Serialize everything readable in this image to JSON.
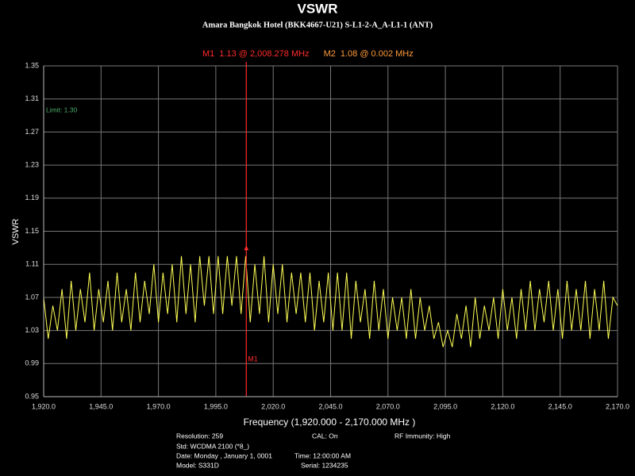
{
  "chart_data": {
    "type": "line",
    "title": "VSWR",
    "subtitle": "Amara Bangkok Hotel (BKK4667-U21) S-L1-2-A_A-L1-1 (ANT)",
    "y_label": "VSWR",
    "x_label": "Frequency (1,920.000 - 2,170.000 MHz )",
    "grid": true,
    "xlim": [
      1920,
      2170
    ],
    "ylim": [
      0.95,
      1.35
    ],
    "xticks": [
      {
        "value": 1920,
        "label": "1,920.0"
      },
      {
        "value": 1945,
        "label": "1,945.0"
      },
      {
        "value": 1970,
        "label": "1,970.0"
      },
      {
        "value": 1995,
        "label": "1,995.0"
      },
      {
        "value": 2020,
        "label": "2,020.0"
      },
      {
        "value": 2045,
        "label": "2,045.0"
      },
      {
        "value": 2070,
        "label": "2,070.0"
      },
      {
        "value": 2095,
        "label": "2,095.0"
      },
      {
        "value": 2120,
        "label": "2,120.0"
      },
      {
        "value": 2145,
        "label": "2,145.0"
      },
      {
        "value": 2170,
        "label": "2,170.0"
      }
    ],
    "yticks": [
      0.95,
      0.99,
      1.03,
      1.07,
      1.11,
      1.15,
      1.19,
      1.23,
      1.27,
      1.31,
      1.35
    ],
    "limit": {
      "label": "Limit: 1.30",
      "value": 1.3,
      "color": "#4caf6a"
    },
    "markers": [
      {
        "name": "M1",
        "text": "1.13 @ 2,008.278 MHz",
        "x": 2008.278,
        "value": 1.13,
        "color": "#ff2a2a"
      },
      {
        "name": "M2",
        "text": "1.08 @ 0.002 MHz",
        "color": "#ff9a3c"
      }
    ],
    "x": [
      1920,
      1922,
      1924,
      1926,
      1928,
      1930,
      1932,
      1934,
      1936,
      1938,
      1940,
      1942,
      1944,
      1946,
      1948,
      1950,
      1952,
      1954,
      1956,
      1958,
      1960,
      1962,
      1964,
      1966,
      1968,
      1970,
      1972,
      1974,
      1976,
      1978,
      1980,
      1982,
      1984,
      1986,
      1988,
      1990,
      1992,
      1994,
      1996,
      1998,
      2000,
      2002,
      2004,
      2006,
      2008,
      2010,
      2012,
      2014,
      2016,
      2018,
      2020,
      2022,
      2024,
      2026,
      2028,
      2030,
      2032,
      2034,
      2036,
      2038,
      2040,
      2042,
      2044,
      2046,
      2048,
      2050,
      2052,
      2054,
      2056,
      2058,
      2060,
      2062,
      2064,
      2066,
      2068,
      2070,
      2072,
      2074,
      2076,
      2078,
      2080,
      2082,
      2084,
      2086,
      2088,
      2090,
      2092,
      2094,
      2096,
      2098,
      2100,
      2102,
      2104,
      2106,
      2108,
      2110,
      2112,
      2114,
      2116,
      2118,
      2120,
      2122,
      2124,
      2126,
      2128,
      2130,
      2132,
      2134,
      2136,
      2138,
      2140,
      2142,
      2144,
      2146,
      2148,
      2150,
      2152,
      2154,
      2156,
      2158,
      2160,
      2162,
      2164,
      2166,
      2168,
      2170
    ],
    "series": [
      {
        "name": "VSWR",
        "color": "#ffff55",
        "values": [
          1.07,
          1.02,
          1.06,
          1.03,
          1.08,
          1.02,
          1.09,
          1.03,
          1.08,
          1.04,
          1.1,
          1.03,
          1.08,
          1.04,
          1.09,
          1.03,
          1.1,
          1.04,
          1.08,
          1.03,
          1.1,
          1.04,
          1.09,
          1.05,
          1.11,
          1.04,
          1.1,
          1.05,
          1.11,
          1.04,
          1.12,
          1.05,
          1.11,
          1.04,
          1.12,
          1.06,
          1.12,
          1.05,
          1.12,
          1.05,
          1.12,
          1.06,
          1.12,
          1.05,
          1.12,
          1.04,
          1.11,
          1.05,
          1.12,
          1.04,
          1.11,
          1.05,
          1.11,
          1.04,
          1.1,
          1.05,
          1.1,
          1.04,
          1.1,
          1.03,
          1.09,
          1.04,
          1.1,
          1.03,
          1.1,
          1.03,
          1.1,
          1.02,
          1.09,
          1.04,
          1.08,
          1.02,
          1.09,
          1.03,
          1.08,
          1.02,
          1.07,
          1.03,
          1.07,
          1.02,
          1.08,
          1.02,
          1.07,
          1.03,
          1.06,
          1.02,
          1.04,
          1.01,
          1.03,
          1.01,
          1.05,
          1.02,
          1.06,
          1.01,
          1.07,
          1.02,
          1.06,
          1.03,
          1.07,
          1.02,
          1.08,
          1.03,
          1.07,
          1.02,
          1.08,
          1.03,
          1.09,
          1.03,
          1.08,
          1.04,
          1.09,
          1.03,
          1.08,
          1.02,
          1.09,
          1.03,
          1.08,
          1.03,
          1.09,
          1.02,
          1.08,
          1.03,
          1.09,
          1.02,
          1.07,
          1.06
        ]
      }
    ]
  },
  "info": [
    "Resolution: 259",
    "CAL: On",
    "RF Immunity: High",
    "Std: WCDMA 2100 (*8_)",
    "Date: Monday , January 1, 0001",
    "Time: 12:00:00 AM",
    "Model: S331D",
    "Serial: 1234235"
  ]
}
